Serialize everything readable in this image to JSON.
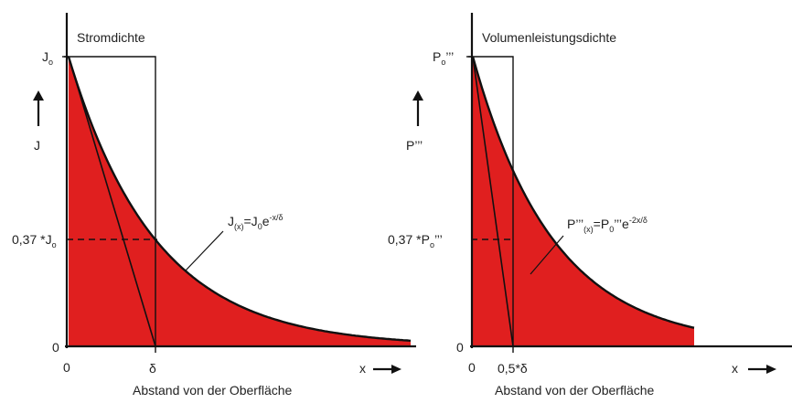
{
  "colors": {
    "fill": "#e01f1f",
    "line": "#111111",
    "background": "#ffffff"
  },
  "left_panel": {
    "title": "Stromdichte",
    "y_top_label": "J",
    "y_top_sub": "o",
    "y_axis_label": "J",
    "y_mid_label_prefix": "0,37 *J",
    "y_mid_label_sub": "o",
    "y_zero": "0",
    "x_zero": "0",
    "x_delta": "δ",
    "x_axis_label": "x",
    "formula": {
      "a": "J",
      "a_sub": "(x)",
      "b": "=J",
      "b_sub": "0",
      "c": "e",
      "c_sup": "-x/δ"
    },
    "footer": "Abstand von der Oberfläche"
  },
  "right_panel": {
    "title": "Volumenleistungsdichte",
    "y_top_label": "P",
    "y_top_sub": "o",
    "y_top_primes": "’’’",
    "y_axis_label": "P’’’",
    "y_mid_label_prefix": "0,37 *P",
    "y_mid_label_sub": "o",
    "y_mid_label_primes": "’’’",
    "y_zero": "0",
    "x_zero": "0",
    "x_delta": "0,5*δ",
    "x_axis_label": "x",
    "formula": {
      "a": "P’’’",
      "a_sub": "(x)",
      "b": "=P",
      "b_sub": "0",
      "c": "’’’e",
      "c_sup": "-2x/δ"
    },
    "footer": "Abstand von der Oberfläche"
  },
  "chart_data": [
    {
      "type": "area",
      "function": "J(x)=J0·e^(-x/δ)",
      "x_unit": "δ",
      "x": [
        0,
        0.5,
        1,
        1.5,
        2,
        2.5,
        3
      ],
      "y_fraction_of_J0": [
        1,
        0.607,
        0.368,
        0.223,
        0.135,
        0.082,
        0.05
      ],
      "marked_points": {
        "x_at_delta": 1,
        "y_at_delta": 0.37
      },
      "tangent_intercept_x": 1
    },
    {
      "type": "area",
      "function": "P'''(x)=P0'''·e^(-2x/δ)",
      "x_unit": "δ",
      "x": [
        0,
        0.25,
        0.5,
        1,
        1.5,
        2,
        2.5
      ],
      "y_fraction_of_P0": [
        1,
        0.607,
        0.368,
        0.135,
        0.05,
        0.018,
        0.007
      ],
      "marked_points": {
        "x_at_half_delta": 0.5,
        "y_at_half_delta": 0.37
      },
      "tangent_intercept_x": 0.5
    }
  ]
}
